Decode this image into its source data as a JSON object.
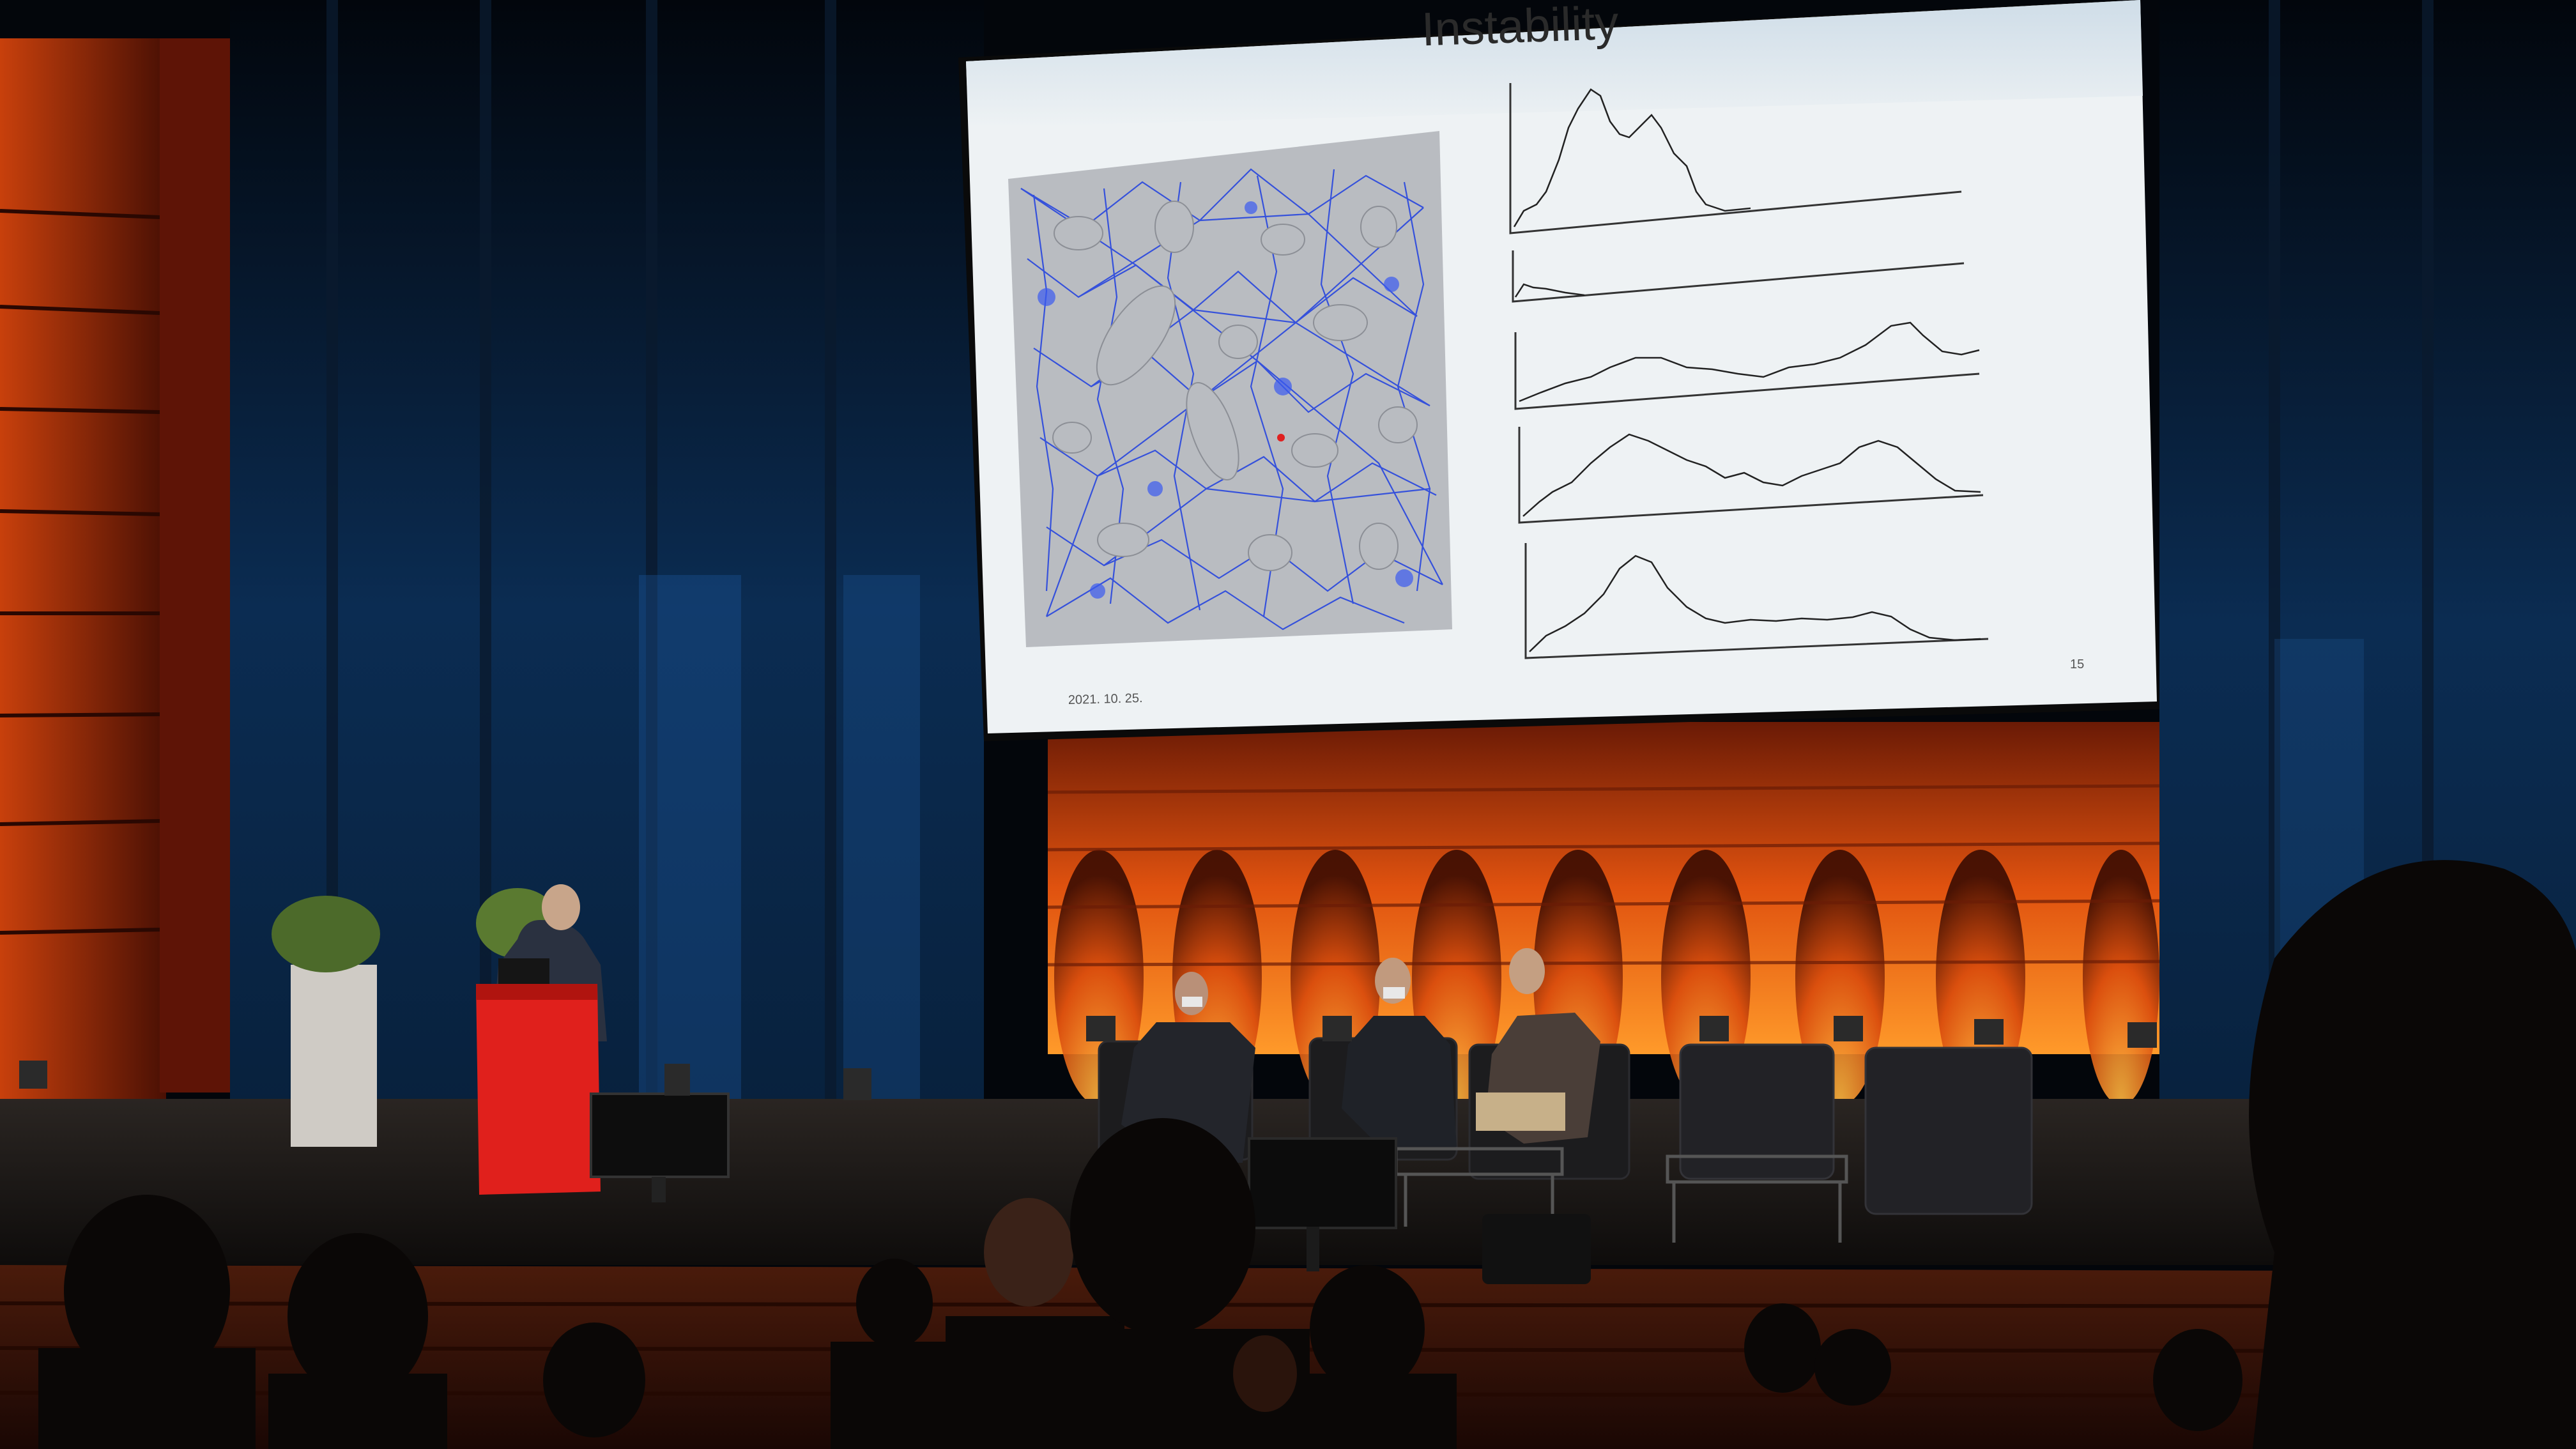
{
  "slide": {
    "title": "Instability",
    "date": "2021. 10. 25.",
    "page_number": "15"
  },
  "colors": {
    "stage_wall_glow": "#e8560f",
    "curtain": "#06121f",
    "podium": "#e0201c",
    "slide_header": "#dbe7f0",
    "network_edges": "#1f3fe0"
  },
  "icons": [
    "podium",
    "potted-shrub",
    "armchair",
    "monitor",
    "stage-light"
  ]
}
